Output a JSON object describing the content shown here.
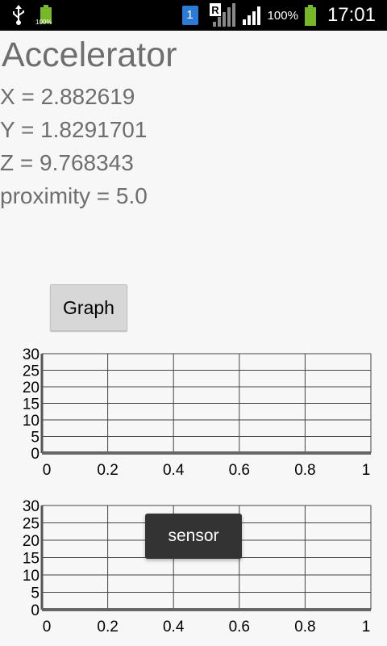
{
  "status_bar": {
    "battery_small_label": "100%",
    "sim_label": "1",
    "roaming_label": "R",
    "battery_percent": "100%",
    "time": "17:01",
    "colors": {
      "battery": "#76b82a",
      "sim": "#2c7bd6"
    }
  },
  "app": {
    "title": "Accelerator",
    "x_line": "X = 2.882619",
    "y_line": "Y = 1.8291701",
    "z_line": "Z = 9.768343",
    "proximity_line": "proximity = 5.0",
    "graph_button": "Graph"
  },
  "toast": {
    "text": "sensor"
  },
  "chart_data": [
    {
      "type": "line",
      "x_ticks": [
        "0",
        "0.2",
        "0.4",
        "0.6",
        "0.8",
        "1"
      ],
      "y_ticks": [
        "0",
        "5",
        "10",
        "15",
        "20",
        "25",
        "30"
      ],
      "xlim": [
        0,
        1
      ],
      "ylim": [
        0,
        30
      ],
      "grid": true,
      "series": []
    },
    {
      "type": "line",
      "x_ticks": [
        "0",
        "0.2",
        "0.4",
        "0.6",
        "0.8",
        "1"
      ],
      "y_ticks": [
        "0",
        "5",
        "10",
        "15",
        "20",
        "25",
        "30"
      ],
      "xlim": [
        0,
        1
      ],
      "ylim": [
        0,
        30
      ],
      "grid": true,
      "series": []
    }
  ]
}
